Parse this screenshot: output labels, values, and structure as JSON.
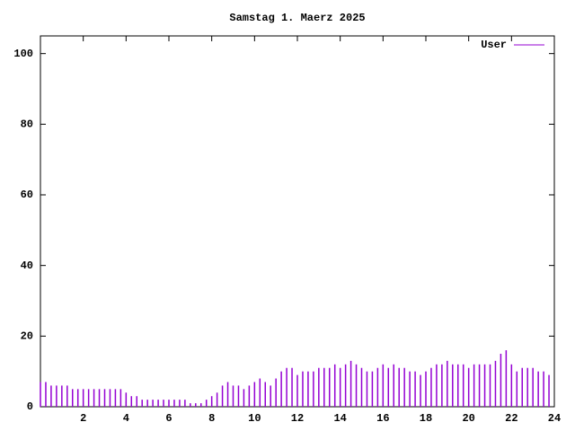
{
  "chart_data": {
    "type": "impulse",
    "title": "Samstag 1. Maerz 2025",
    "x": [
      0,
      0.25,
      0.5,
      0.75,
      1,
      1.25,
      1.5,
      1.75,
      2,
      2.25,
      2.5,
      2.75,
      3,
      3.25,
      3.5,
      3.75,
      4,
      4.25,
      4.5,
      4.75,
      5,
      5.25,
      5.5,
      5.75,
      6,
      6.25,
      6.5,
      6.75,
      7,
      7.25,
      7.5,
      7.75,
      8,
      8.25,
      8.5,
      8.75,
      9,
      9.25,
      9.5,
      9.75,
      10,
      10.25,
      10.5,
      10.75,
      11,
      11.25,
      11.5,
      11.75,
      12,
      12.25,
      12.5,
      12.75,
      13,
      13.25,
      13.5,
      13.75,
      14,
      14.25,
      14.5,
      14.75,
      15,
      15.25,
      15.5,
      15.75,
      16,
      16.25,
      16.5,
      16.75,
      17,
      17.25,
      17.5,
      17.75,
      18,
      18.25,
      18.5,
      18.75,
      19,
      19.25,
      19.5,
      19.75,
      20,
      20.25,
      20.5,
      20.75,
      21,
      21.25,
      21.5,
      21.75,
      22,
      22.25,
      22.5,
      22.75,
      23,
      23.25,
      23.5,
      23.75
    ],
    "series": [
      {
        "name": "User",
        "color": "#9400d3",
        "values": [
          7,
          7,
          6,
          6,
          6,
          6,
          5,
          5,
          5,
          5,
          5,
          5,
          5,
          5,
          5,
          5,
          4,
          3,
          3,
          2,
          2,
          2,
          2,
          2,
          2,
          2,
          2,
          2,
          1,
          1,
          1,
          2,
          3,
          4,
          6,
          7,
          6,
          6,
          5,
          6,
          7,
          8,
          7,
          6,
          8,
          10,
          11,
          11,
          9,
          10,
          10,
          10,
          11,
          11,
          11,
          12,
          11,
          12,
          13,
          12,
          11,
          10,
          10,
          11,
          12,
          11,
          12,
          11,
          11,
          10,
          10,
          9,
          10,
          11,
          12,
          12,
          13,
          12,
          12,
          12,
          11,
          12,
          12,
          12,
          12,
          13,
          15,
          16,
          12,
          10,
          11,
          11,
          11,
          10,
          10,
          9
        ]
      }
    ],
    "xlim": [
      0,
      24
    ],
    "xticks": [
      2,
      4,
      6,
      8,
      10,
      12,
      14,
      16,
      18,
      20,
      22,
      24
    ],
    "ylim": [
      0,
      105
    ],
    "yticks": [
      0,
      20,
      40,
      60,
      80,
      100
    ],
    "legend": "top-right"
  }
}
